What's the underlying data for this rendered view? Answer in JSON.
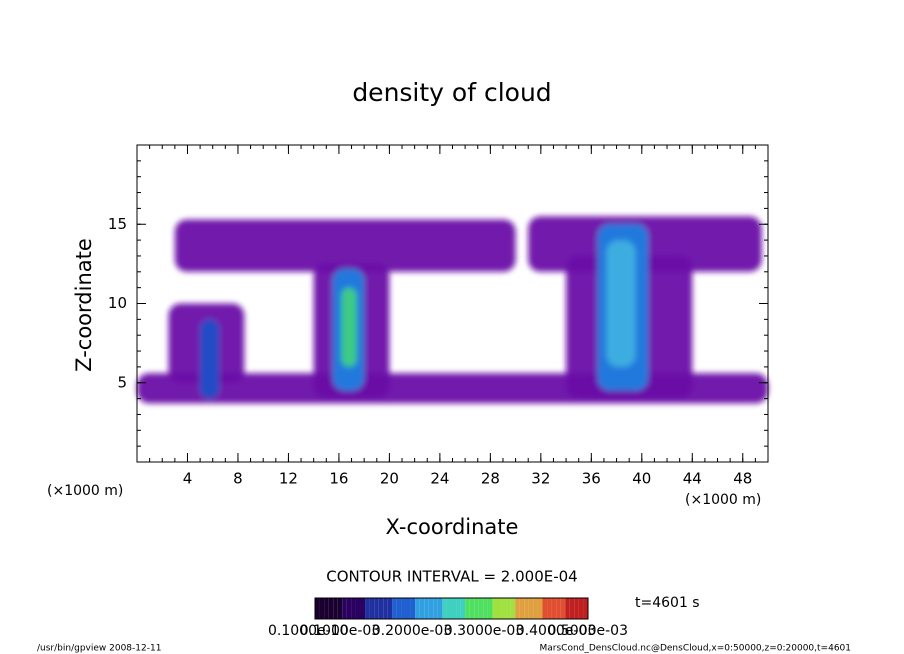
{
  "chart_data": {
    "type": "contour",
    "title": "density of cloud",
    "x_label": "X-coordinate",
    "y_label": "Z-coordinate",
    "x_unit": "(×1000 m)",
    "xlim": [
      0,
      50
    ],
    "ylim": [
      0,
      20
    ],
    "xticks": [
      4,
      8,
      12,
      16,
      20,
      24,
      28,
      32,
      36,
      40,
      44,
      48
    ],
    "yticks": [
      5,
      10,
      15
    ],
    "contour_interval": "CONTOUR INTERVAL = 2.000E-04",
    "time_label": "t=4601 s",
    "colorbar_labels": [
      "0.1000e-10",
      "0.1000e-03",
      "0.2000e-03",
      "0.3000e-03",
      "0.4000e-03",
      "0.5000e-03"
    ],
    "colorbar_colors": [
      "#1a0030",
      "#2a0060",
      "#2030a0",
      "#2060d0",
      "#30a0e0",
      "#40d0c0",
      "#50e060",
      "#a0e040",
      "#e0a040",
      "#e05030",
      "#c02020"
    ],
    "regions": [
      {
        "x": [
          0,
          50
        ],
        "z": [
          3.7,
          5.6
        ],
        "color": "#6a10a8"
      },
      {
        "x": [
          3,
          30
        ],
        "z": [
          12,
          15.3
        ],
        "color": "#6a10a8"
      },
      {
        "x": [
          31,
          49.5
        ],
        "z": [
          12,
          15.5
        ],
        "color": "#6a10a8"
      },
      {
        "x": [
          2.5,
          8.5
        ],
        "z": [
          5,
          10
        ],
        "color": "#6a10a8"
      },
      {
        "x": [
          14,
          20
        ],
        "z": [
          4,
          12.5
        ],
        "color": "#6a10a8"
      },
      {
        "x": [
          34,
          44
        ],
        "z": [
          4,
          13
        ],
        "color": "#6a10a8"
      },
      {
        "x": [
          5,
          6.5
        ],
        "z": [
          4,
          9
        ],
        "color": "#2050c8"
      },
      {
        "x": [
          15.5,
          18
        ],
        "z": [
          4.5,
          12.2
        ],
        "color": "#2080e0"
      },
      {
        "x": [
          36.5,
          40.5
        ],
        "z": [
          4.5,
          15
        ],
        "color": "#2080e0"
      },
      {
        "x": [
          16.2,
          17.4
        ],
        "z": [
          6,
          11
        ],
        "color": "#40d080"
      },
      {
        "x": [
          37.2,
          39.5
        ],
        "z": [
          6,
          14
        ],
        "color": "#40b0e0"
      }
    ],
    "footer_left": "/usr/bin/gpview   2008-12-11",
    "footer_right": "MarsCond_DensCloud.nc@DensCloud,x=0:50000,z=0:20000,t=4601"
  }
}
